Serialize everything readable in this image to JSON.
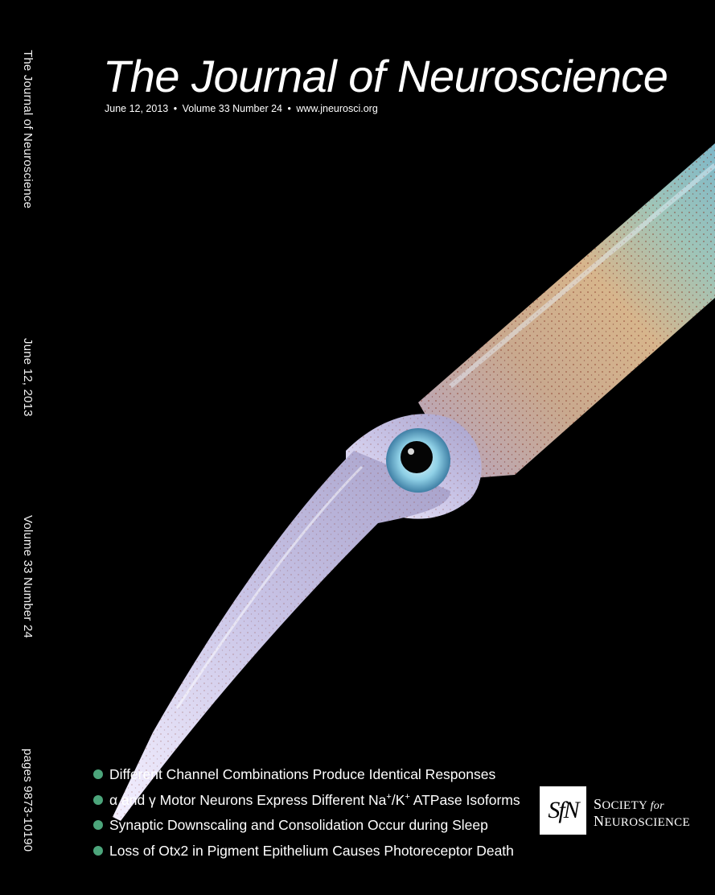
{
  "journal": {
    "title": "The Journal of Neuroscience",
    "date": "June 12, 2013",
    "volume": "Volume 33 Number 24",
    "url": "www.jneurosci.org",
    "bullet": "•"
  },
  "spine": {
    "title": "The Journal of Neuroscience",
    "date": "June 12, 2013",
    "volume": "Volume 33 Number 24",
    "pages": "pages 9873-10190"
  },
  "highlights": [
    {
      "text": "Different Channel Combinations Produce Identical Responses"
    },
    {
      "pre": "α and γ Motor Neurons Express Different Na",
      "sup1": "+",
      "mid": "/K",
      "sup2": "+",
      "post": " ATPase Isoforms"
    },
    {
      "text": "Synaptic Downscaling and Consolidation Occur during Sleep"
    },
    {
      "text": "Loss of Otx2 in Pigment Epithelium Causes Photoreceptor Death"
    }
  ],
  "society": {
    "logo_text": "SfN",
    "line1_society": "Society",
    "line1_for": "for",
    "line2": "Neuroscience"
  },
  "colors": {
    "background": "#000000",
    "bullet": "#4ca57b"
  }
}
